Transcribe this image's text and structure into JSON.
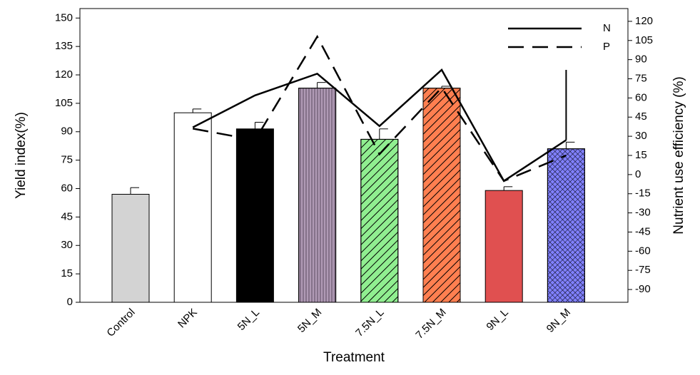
{
  "chart_data": {
    "type": "bar",
    "categories": [
      "Control",
      "NPK",
      "5N_L",
      "5N_M",
      "7.5N_L",
      "7.5N_M",
      "9N_L",
      "9N_M"
    ],
    "values": [
      57,
      100,
      91.5,
      113,
      86,
      113,
      59,
      81
    ],
    "errors": [
      3.5,
      2,
      3.5,
      3,
      5.5,
      1,
      2,
      3.5
    ],
    "colors": [
      "#d3d3d3",
      "#ffffff",
      "#000000",
      "#b09ab5",
      "#90ee90",
      "#ff7f50",
      "#e05050",
      "#8080ff"
    ],
    "hatches": [
      "none",
      "none",
      "none",
      "vline",
      "diag",
      "diag",
      "none",
      "cross"
    ],
    "xlabel": "Treatment",
    "ylabel": "Yield index(%)",
    "y2label": "Nutrient use efficiency (%)",
    "ylim": [
      0,
      155
    ],
    "yticks": [
      0,
      15,
      30,
      45,
      60,
      75,
      90,
      105,
      120,
      135,
      150
    ],
    "y2lim": [
      -100,
      130
    ],
    "y2ticks": [
      -90,
      -75,
      -60,
      -45,
      -30,
      -15,
      0,
      15,
      30,
      45,
      60,
      75,
      90,
      105,
      120
    ],
    "legend": "upper right",
    "series": [
      {
        "name": "N",
        "color": "#000000",
        "dash": "solid",
        "axis": "y2",
        "values": [
          null,
          37,
          62,
          79,
          38,
          82,
          -5,
          27
        ],
        "errors": [
          null,
          null,
          null,
          null,
          null,
          null,
          null,
          55
        ]
      },
      {
        "name": "P",
        "color": "#000000",
        "dash": "dashed",
        "axis": "y2",
        "values": [
          null,
          36,
          27,
          108,
          16,
          68,
          -5,
          15
        ]
      }
    ]
  }
}
